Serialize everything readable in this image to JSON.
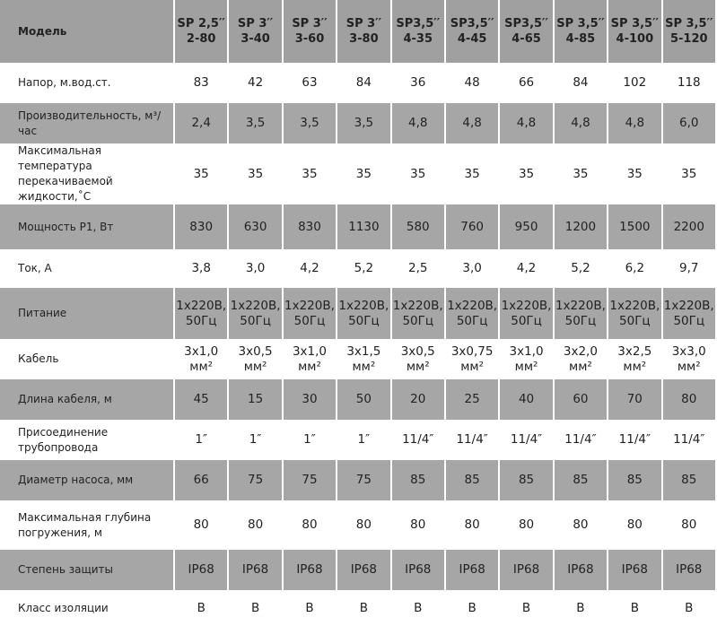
{
  "table": {
    "header": [
      "Модель",
      "SP 2,5′′\n2-80",
      "SP 3′′\n3-40",
      "SP 3′′\n3-60",
      "SP 3′′\n3-80",
      "SP3,5′′\n4-35",
      "SP3,5′′\n4-45",
      "SP3,5′′\n4-65",
      "SP 3,5′′\n4-85",
      "SP 3,5′′\n4-100",
      "SP 3,5′′\n5-120"
    ],
    "rows": [
      [
        "Напор, м.вод.ст.",
        "83",
        "42",
        "63",
        "84",
        "36",
        "48",
        "66",
        "84",
        "102",
        "118"
      ],
      [
        "Производительность, м³/час",
        "2,4",
        "3,5",
        "3,5",
        "3,5",
        "4,8",
        "4,8",
        "4,8",
        "4,8",
        "4,8",
        "6,0"
      ],
      [
        "Максимальная температура\nперекачиваемой жидкости,˚C",
        "35",
        "35",
        "35",
        "35",
        "35",
        "35",
        "35",
        "35",
        "35",
        "35"
      ],
      [
        "Мощность P1, Вт",
        "830",
        "630",
        "830",
        "1130",
        "580",
        "760",
        "950",
        "1200",
        "1500",
        "2200"
      ],
      [
        "Ток, А",
        "3,8",
        "3,0",
        "4,2",
        "5,2",
        "2,5",
        "3,0",
        "4,2",
        "5,2",
        "6,2",
        "9,7"
      ],
      [
        "Питание",
        "1x220B,\n50Гц",
        "1x220B,\n50Гц",
        "1x220B,\n50Гц",
        "1x220B,\n50Гц",
        "1x220B,\n50Гц",
        "1x220B,\n50Гц",
        "1x220B,\n50Гц",
        "1x220B,\n50Гц",
        "1x220B,\n50Гц",
        "1x220B,\n50Гц"
      ],
      [
        "Кабель",
        "3x1,0\nмм²",
        "3x0,5\nмм²",
        "3x1,0\nмм²",
        "3x1,5\nмм²",
        "3x0,5\nмм²",
        "3x0,75\nмм²",
        "3x1,0\nмм²",
        "3x2,0\nмм²",
        "3x2,5\nмм²",
        "3x3,0\nмм²"
      ],
      [
        "Длина кабеля, м",
        "45",
        "15",
        "30",
        "50",
        "20",
        "25",
        "40",
        "60",
        "70",
        "80"
      ],
      [
        "Присоединение\nтрубопровода",
        "1″",
        "1″",
        "1″",
        "1″",
        "11/4″",
        "11/4″",
        "11/4″",
        "11/4″",
        "11/4″",
        "11/4″"
      ],
      [
        "Диаметр насоса, мм",
        "66",
        "75",
        "75",
        "75",
        "85",
        "85",
        "85",
        "85",
        "85",
        "85"
      ],
      [
        "Максимальная глубина\nпогружения, м",
        "80",
        "80",
        "80",
        "80",
        "80",
        "80",
        "80",
        "80",
        "80",
        "80"
      ],
      [
        "Степень защиты",
        "IP68",
        "IP68",
        "IP68",
        "IP68",
        "IP68",
        "IP68",
        "IP68",
        "IP68",
        "IP68",
        "IP68"
      ],
      [
        "Класс изоляции",
        "B",
        "B",
        "B",
        "B",
        "B",
        "B",
        "B",
        "B",
        "B",
        "B"
      ]
    ]
  }
}
